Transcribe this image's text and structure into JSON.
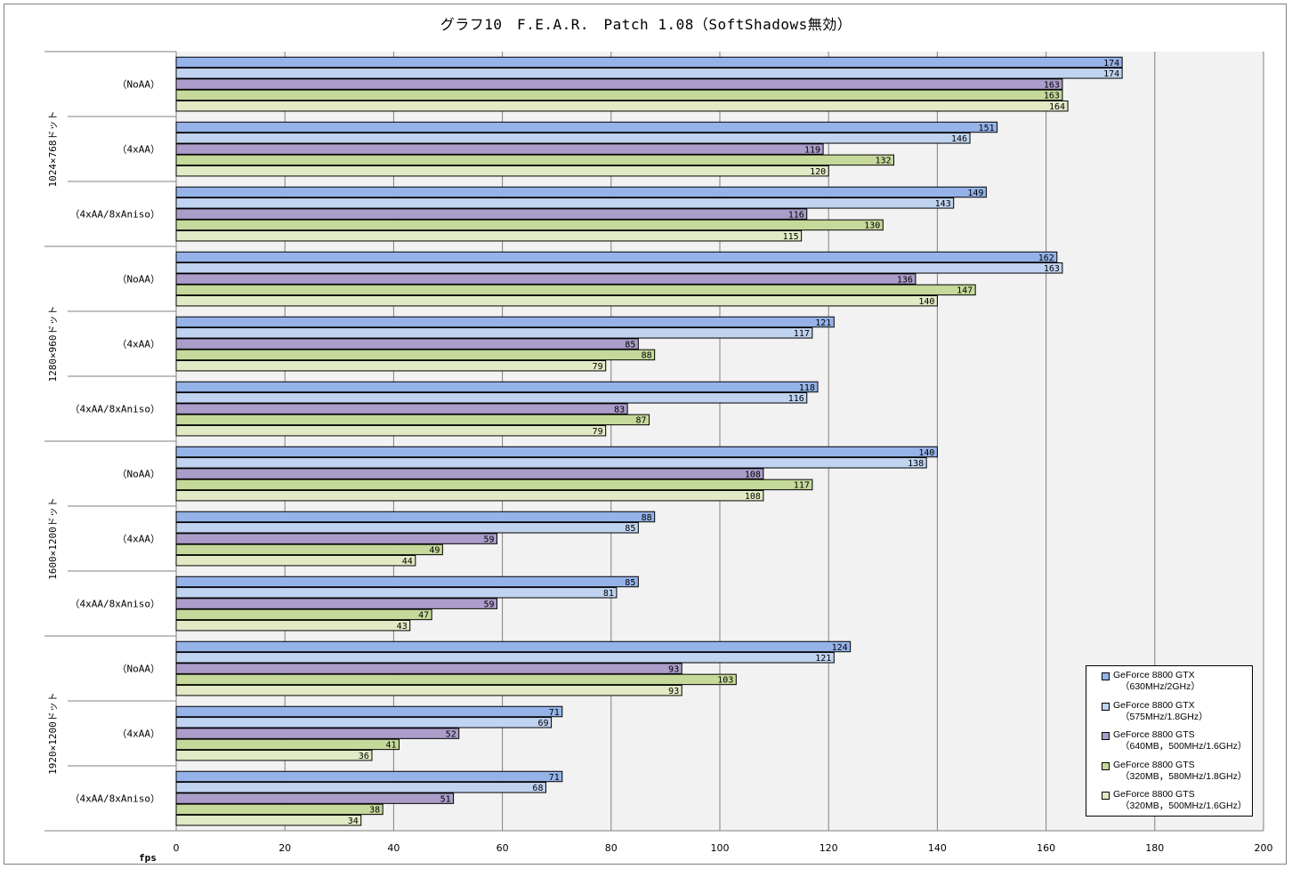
{
  "chart_data": {
    "type": "bar",
    "orientation": "horizontal",
    "title": "グラフ10　F.E.A.R.　Patch 1.08（SoftShadows無効）",
    "xlabel": "fps",
    "xlim": [
      0,
      200
    ],
    "xticks": [
      0,
      20,
      40,
      60,
      80,
      100,
      120,
      140,
      160,
      180,
      200
    ],
    "grid": true,
    "legend_position": "bottom-right",
    "groups": [
      {
        "name": "1024×768ドット",
        "categories": [
          "（NoAA）",
          "（4xAA）",
          "（4xAA/8xAniso）"
        ]
      },
      {
        "name": "1280×960ドット",
        "categories": [
          "（NoAA）",
          "（4xAA）",
          "（4xAA/8xAniso）"
        ]
      },
      {
        "name": "1600×1200ドット",
        "categories": [
          "（NoAA）",
          "（4xAA）",
          "（4xAA/8xAniso）"
        ]
      },
      {
        "name": "1920×1200ドット",
        "categories": [
          "（NoAA）",
          "（4xAA）",
          "（4xAA/8xAniso）"
        ]
      }
    ],
    "series": [
      {
        "name": "GeForce 8800 GTX",
        "spec": "（630MHz/2GHz）",
        "color": "#95b3e8",
        "values": [
          174,
          151,
          149,
          162,
          121,
          118,
          140,
          88,
          85,
          124,
          71,
          71
        ]
      },
      {
        "name": "GeForce 8800 GTX",
        "spec": "（575MHz/1.8GHz）",
        "color": "#c0d3f0",
        "values": [
          174,
          146,
          143,
          163,
          117,
          116,
          138,
          85,
          81,
          121,
          69,
          68
        ]
      },
      {
        "name": "GeForce 8800 GTS",
        "spec": "（640MB，500MHz/1.6GHz）",
        "color": "#ab9dc9",
        "values": [
          163,
          119,
          116,
          136,
          85,
          83,
          108,
          59,
          59,
          93,
          52,
          51
        ]
      },
      {
        "name": "GeForce 8800 GTS",
        "spec": "（320MB，580MHz/1.8GHz）",
        "color": "#c5d99b",
        "values": [
          163,
          132,
          130,
          147,
          88,
          87,
          117,
          49,
          47,
          103,
          41,
          38
        ]
      },
      {
        "name": "GeForce 8800 GTS",
        "spec": "（320MB，500MHz/1.6GHz）",
        "color": "#e1eac5",
        "values": [
          164,
          120,
          115,
          140,
          79,
          79,
          108,
          44,
          43,
          93,
          36,
          34
        ]
      }
    ]
  }
}
